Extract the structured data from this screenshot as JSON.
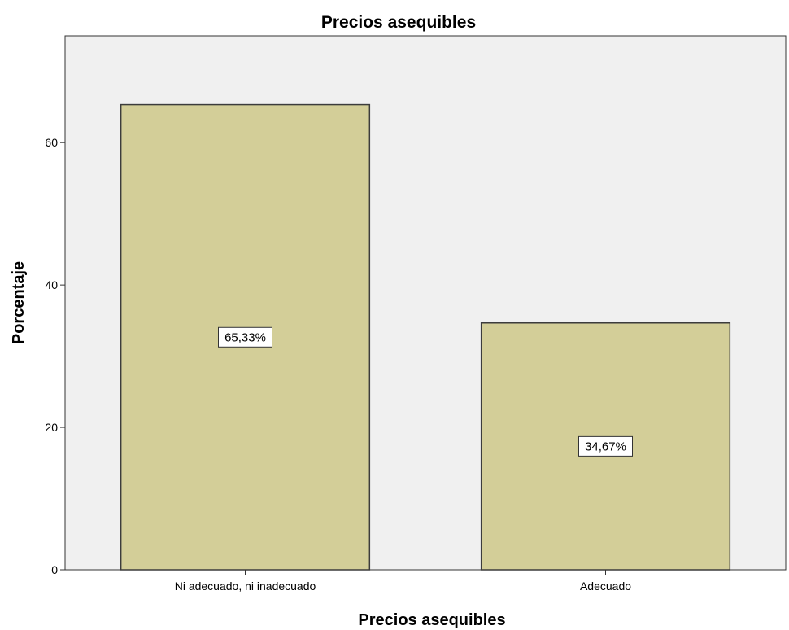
{
  "chart_data": {
    "type": "bar",
    "title": "Precios asequibles",
    "xlabel": "Precios asequibles",
    "ylabel": "Porcentaje",
    "categories": [
      "Ni adecuado, ni inadecuado",
      "Adecuado"
    ],
    "values": [
      65.33,
      34.67
    ],
    "data_labels": [
      "65,33%",
      "34,67%"
    ],
    "ylim": [
      0,
      75
    ],
    "yticks": [
      0,
      20,
      40,
      60
    ],
    "ytick_labels": [
      "0",
      "20",
      "40",
      "60"
    ],
    "grid": false,
    "legend": "none",
    "colors": {
      "plot_background": "#f0f0f0",
      "bar_fill": "#d3ce98",
      "bar_stroke": "#3c3c3c",
      "label_box": "#ffffff"
    }
  }
}
